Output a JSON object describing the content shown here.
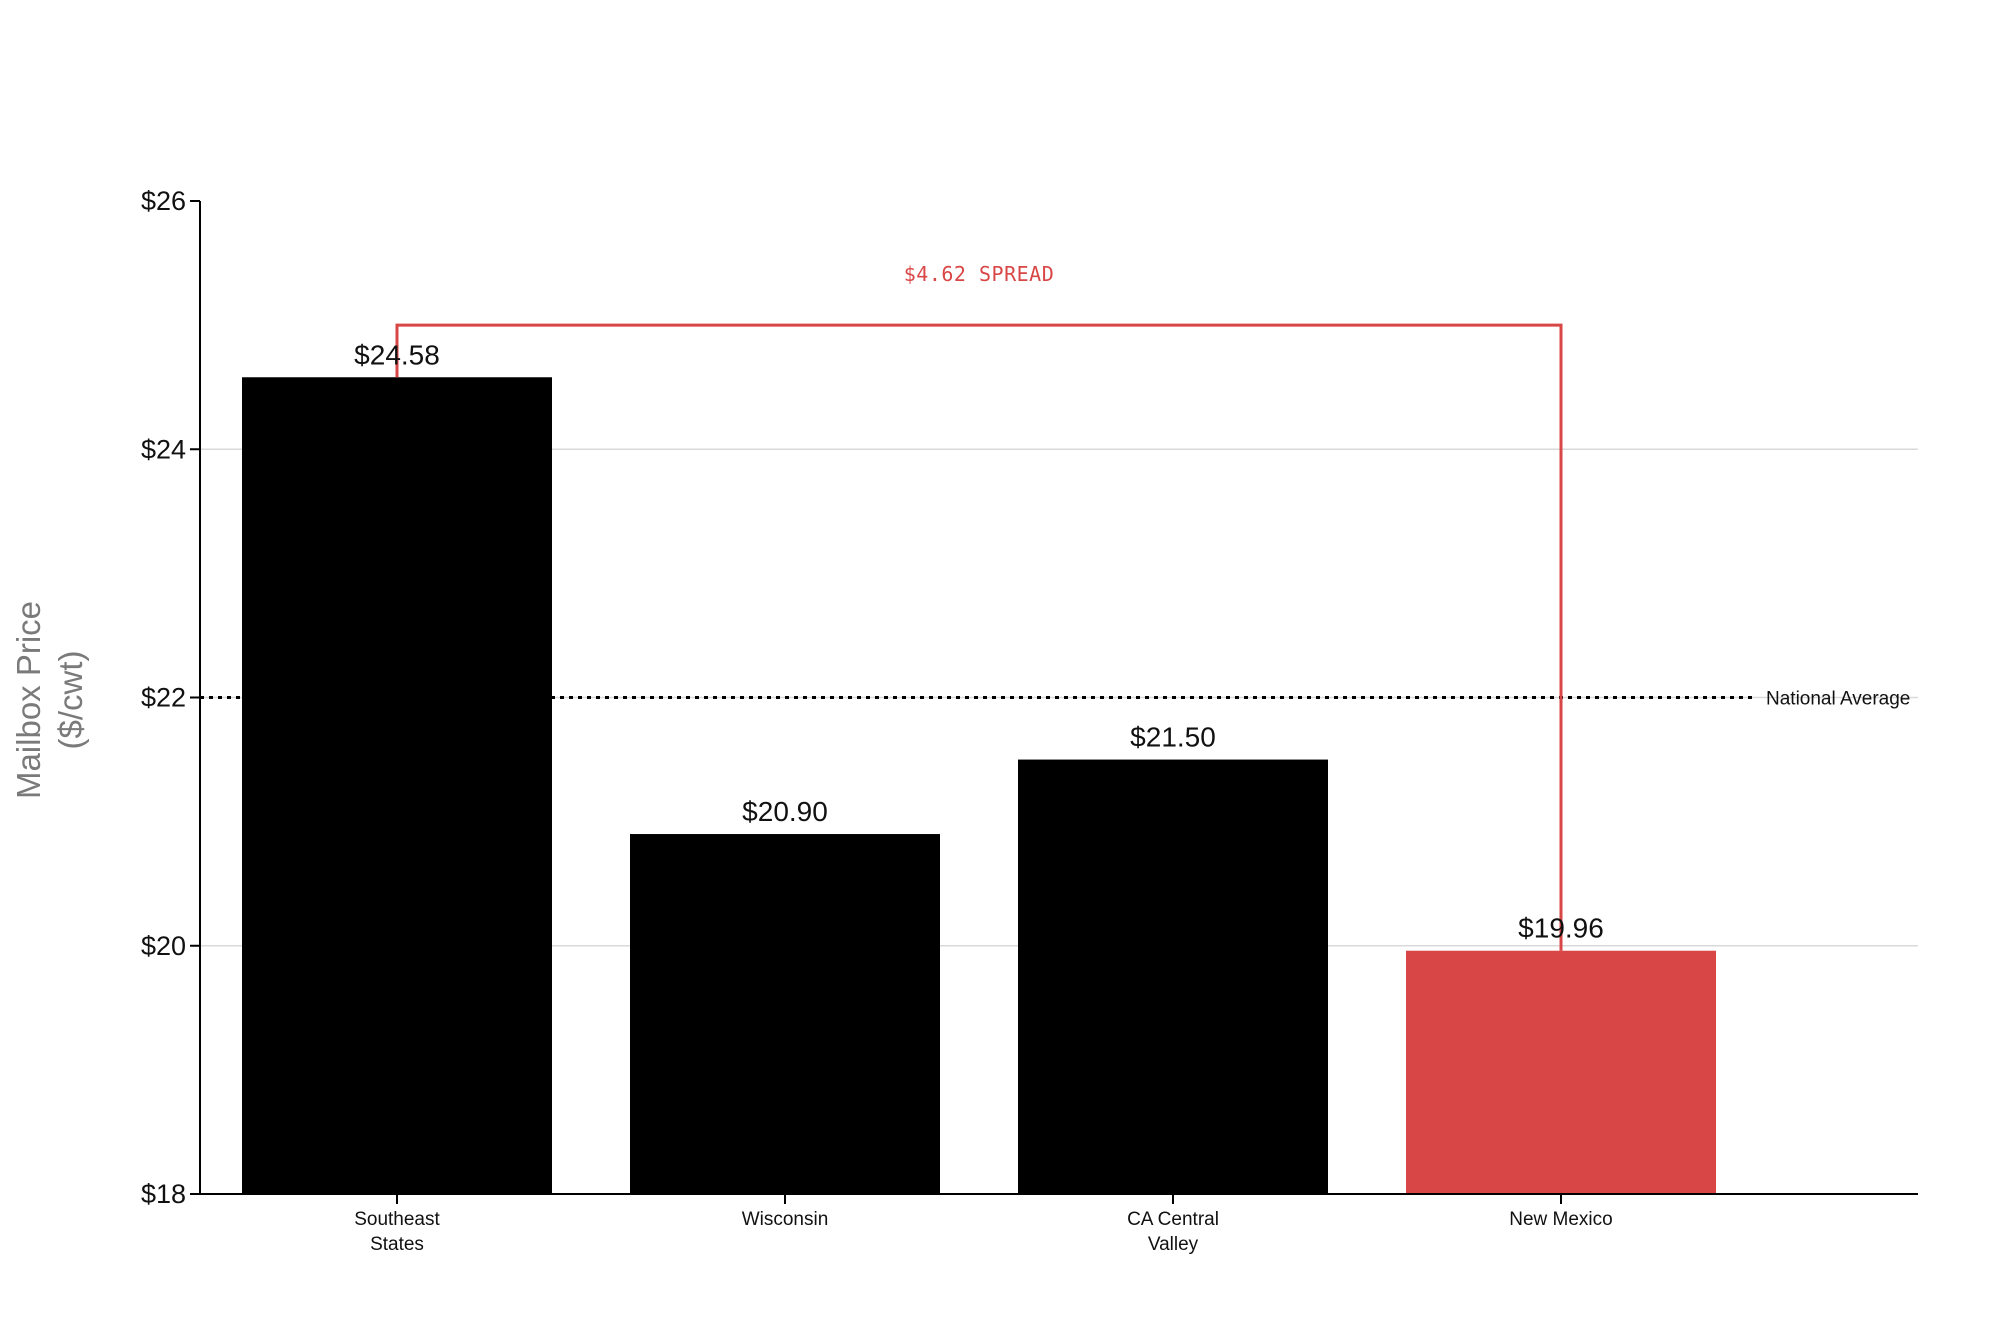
{
  "chart_data": {
    "type": "bar",
    "categories": [
      [
        "Southeast",
        "States"
      ],
      [
        "Wisconsin"
      ],
      [
        "CA Central",
        "Valley"
      ],
      [
        "New Mexico"
      ]
    ],
    "values": [
      24.58,
      20.9,
      21.5,
      19.96
    ],
    "data_labels": [
      "$24.58",
      "$20.90",
      "$21.50",
      "$19.96"
    ],
    "ylabel": [
      "Mailbox Price",
      "($/cwt)"
    ],
    "ylim": [
      18,
      26
    ],
    "yticks": [
      18,
      20,
      22,
      24,
      26
    ],
    "ytick_labels": [
      "$18",
      "$20",
      "$22",
      "$24",
      "$26"
    ],
    "grid": "horizontal",
    "reference_line": {
      "value": 22,
      "label": "National Average",
      "style": "dotted"
    },
    "annotation": {
      "text": "$4.62 SPREAD",
      "from_category": 0,
      "to_category": 3,
      "level": 25
    },
    "highlight_index": 3,
    "colors": {
      "bar": "#000000",
      "highlight": "#d94646",
      "annotation": "#d94646",
      "grid": "#d9d9d9",
      "axis": "#000000"
    }
  }
}
